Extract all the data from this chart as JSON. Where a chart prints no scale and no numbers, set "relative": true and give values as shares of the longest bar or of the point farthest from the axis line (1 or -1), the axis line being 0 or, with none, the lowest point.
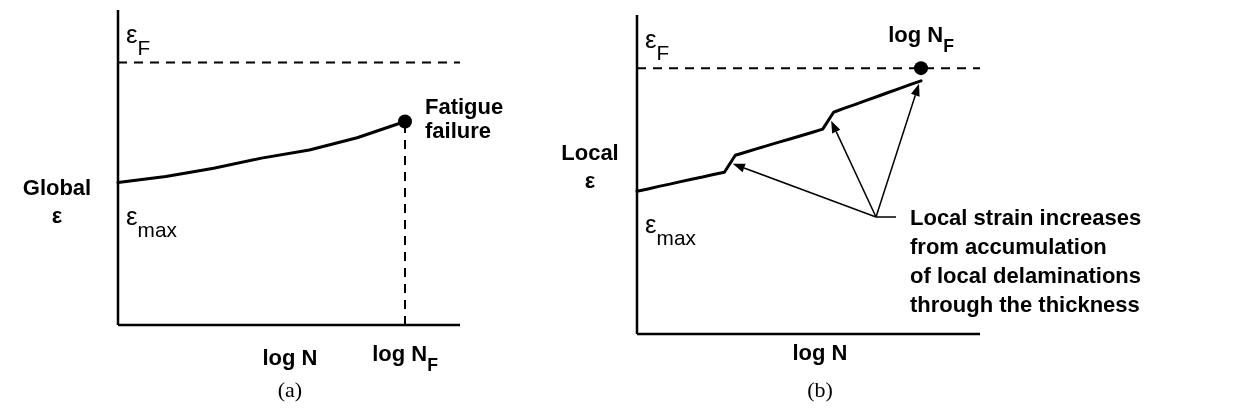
{
  "chart_data": [
    {
      "type": "line",
      "title": "(a)",
      "xlabel": "log N",
      "ylabel": "Global\nε",
      "relative": true,
      "line_style": "solid",
      "categories": [
        null,
        null,
        null,
        null,
        null,
        null,
        null
      ],
      "series": [
        {
          "color": "#000000",
          "values": [
            0.7,
            0.73,
            0.77,
            0.82,
            0.86,
            0.92,
            1.0
          ]
        }
      ],
      "ref_lines": [
        {
          "axis": "y",
          "value": 1.29,
          "label": "ε$_{F}$",
          "line_style": "dashed"
        }
      ],
      "annotations": [
        "ε$_{max}$",
        "Fatigue\nfailure",
        "log N$_{F}$"
      ]
    },
    {
      "type": "line",
      "title": "(b)",
      "xlabel": "log N",
      "ylabel": "Local\nε",
      "relative": true,
      "line_style": "solid",
      "categories": [
        null,
        null,
        null,
        null,
        null,
        null,
        null,
        null,
        null,
        null,
        null,
        null,
        null,
        null,
        null,
        null,
        null,
        null,
        null,
        null,
        null,
        null,
        null,
        null,
        null,
        null,
        null
      ],
      "series": [
        {
          "color": "#000000",
          "values": [
            0.564,
            0.573,
            0.583,
            0.592,
            0.602,
            0.611,
            0.62,
            0.63,
            0.639,
            0.706,
            0.719,
            0.732,
            0.745,
            0.758,
            0.77,
            0.783,
            0.796,
            0.809,
            0.876,
            0.892,
            0.907,
            0.923,
            0.938,
            0.954,
            0.969,
            0.985,
            1.0
          ]
        }
      ],
      "ref_lines": [
        {
          "axis": "y",
          "value": 1.05,
          "label": "ε$_{F}$",
          "line_style": "dashed"
        }
      ],
      "annotations": [
        "ε$_{max}$",
        {
          "text": "log N$_{F}$",
          "y": 1.05
        },
        "Local strain increases\nfrom accumulation\nof local delaminations\nthrough the thickness"
      ]
    }
  ]
}
